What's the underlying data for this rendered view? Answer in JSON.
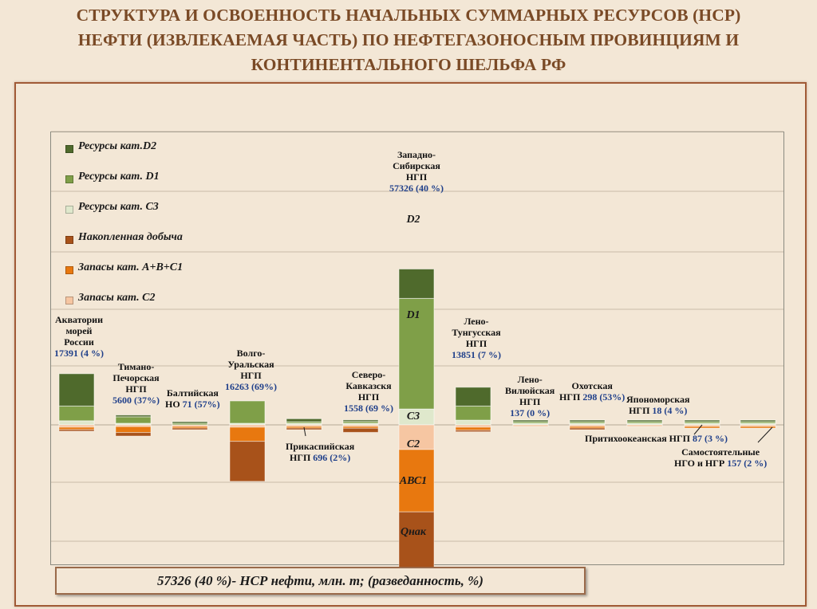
{
  "title_lines": [
    "СТРУКТУРА И ОСВОЕННОСТЬ НАЧАЛЬНЫХ СУММАРНЫХ РЕСУРСОВ (НСР)",
    "НЕФТИ (ИЗВЛЕКАЕМАЯ ЧАСТЬ) ПО НЕФТЕГАЗОНОСНЫМ ПРОВИНЦИЯМ  И",
    "КОНТИНЕНТАЛЬНОГО ШЕЛЬФА РФ"
  ],
  "footer_note": "57326 (40 %)- НСР нефти, млн. т; (разведанность, %)",
  "colors": {
    "background": "#f3e7d6",
    "title": "#7a4a26",
    "value_text": "#1f3f8a",
    "D2": "#4f6a2c",
    "D1": "#7f9f48",
    "C3": "#dfe8cc",
    "Qnak": "#a8521a",
    "ABC1": "#e8780f",
    "C2": "#f6c6a2"
  },
  "chart_data": {
    "type": "bar",
    "subtype": "stacked-diverging",
    "notes": "Segments above the zero line are resources (D2, D1, C3); segments below are production and reserves (Qнак, ABC1, C2). Values are approximate, in million tonnes.",
    "legend_position": "top-left",
    "grid": true,
    "ylim": [
      -21000,
      37000
    ],
    "legend": [
      {
        "key": "D2",
        "label": "Ресурсы кат.D2"
      },
      {
        "key": "D1",
        "label": "Ресурсы кат. D1"
      },
      {
        "key": "C3",
        "label": "Ресурсы кат. С3"
      },
      {
        "key": "Qnak",
        "label": "Накопленная добыча"
      },
      {
        "key": "ABC1",
        "label": "Запасы кат. А+В+С1"
      },
      {
        "key": "C2",
        "label": "Запасы кат. С2"
      }
    ],
    "segment_labels": {
      "D2": "D2",
      "D1": "D1",
      "C3": "С3",
      "C2": "С2",
      "ABC1": "АВС1",
      "Qnak": "Qнак"
    },
    "provinces": [
      {
        "name_lines": [
          "Акватории",
          "морей",
          "России"
        ],
        "value": "17391 (4 %)",
        "total": 17391,
        "explored_pct": 4,
        "segments": {
          "D2": 5500,
          "D1": 2500,
          "C3": 700,
          "Qnak": 100,
          "ABC1": 400,
          "C2": 400
        }
      },
      {
        "name_lines": [
          "Тимано-",
          "Печорская",
          "НГП"
        ],
        "value": "5600 (37%)",
        "total": 5600,
        "explored_pct": 37,
        "segments": {
          "D2": 300,
          "D1": 1100,
          "C3": 100,
          "Qnak": 600,
          "ABC1": 1000,
          "C2": 300
        }
      },
      {
        "name_lines": [
          "Балтийская",
          "НО"
        ],
        "value": "71 (57%)",
        "total": 71,
        "explored_pct": 57,
        "segments": {
          "D2": 20,
          "D1": 10,
          "C3": 0,
          "Qnak": 20,
          "ABC1": 15,
          "C2": 6
        }
      },
      {
        "name_lines": [
          "Волго-",
          "Уральская",
          "НГП"
        ],
        "value": "16263 (69%)",
        "total": 16263,
        "explored_pct": 69,
        "segments": {
          "D2": 0,
          "D1": 3800,
          "C3": 200,
          "Qnak": 6800,
          "ABC1": 2400,
          "C2": 400
        }
      },
      {
        "name_lines": [
          "Прикаспийская",
          "НГП"
        ],
        "value": "696 (2%)",
        "total": 696,
        "explored_pct": 2,
        "segments": {
          "D2": 500,
          "D1": 150,
          "C3": 30,
          "Qnak": 5,
          "ABC1": 5,
          "C2": 6
        }
      },
      {
        "name_lines": [
          "Северо-",
          "Кавказскя",
          "НГП"
        ],
        "value": "1558 (69 %)",
        "total": 1558,
        "explored_pct": 69,
        "segments": {
          "D2": 150,
          "D1": 300,
          "C3": 40,
          "Qnak": 700,
          "ABC1": 300,
          "C2": 68
        }
      },
      {
        "name_lines": [
          "Западно-",
          "Сибирская",
          "НГП"
        ],
        "value": "57326 (40 %)",
        "total": 57326,
        "explored_pct": 40,
        "segments": {
          "D2": 5000,
          "D1": 18800,
          "C3": 2700,
          "Qnak": 11200,
          "ABC1": 10600,
          "C2": 4200
        }
      },
      {
        "name_lines": [
          "Лено-",
          "Тунгусская",
          "НГП"
        ],
        "value": "13851 (7 %)",
        "total": 13851,
        "explored_pct": 7,
        "segments": {
          "D2": 3200,
          "D1": 2400,
          "C3": 800,
          "Qnak": 100,
          "ABC1": 500,
          "C2": 400
        }
      },
      {
        "name_lines": [
          "Лено-",
          "Вилюйская",
          "НГП"
        ],
        "value": "137 (0 %)",
        "total": 137,
        "explored_pct": 0,
        "segments": {
          "D2": 60,
          "D1": 50,
          "C3": 20,
          "Qnak": 0,
          "ABC1": 0,
          "C2": 7
        }
      },
      {
        "name_lines": [
          "Охотская",
          "НГП"
        ],
        "value": "298 (53%)",
        "total": 298,
        "explored_pct": 53,
        "segments": {
          "D2": 60,
          "D1": 60,
          "C3": 20,
          "Qnak": 60,
          "ABC1": 80,
          "C2": 18
        }
      },
      {
        "name_lines": [
          "Япономорская",
          "НГП"
        ],
        "value": "18 (4 %)",
        "total": 18,
        "explored_pct": 4,
        "segments": {
          "D2": 10,
          "D1": 5,
          "C3": 2,
          "Qnak": 0,
          "ABC1": 0,
          "C2": 1
        }
      },
      {
        "name_lines": [
          "Притихоокеанская НГП"
        ],
        "value": "87 (3 %)",
        "total": 87,
        "explored_pct": 3,
        "segments": {
          "D2": 50,
          "D1": 30,
          "C3": 4,
          "Qnak": 0,
          "ABC1": 2,
          "C2": 1
        }
      },
      {
        "name_lines": [
          "Самостоятельные",
          "НГО и НГР"
        ],
        "value": "157 (2 %)",
        "total": 157,
        "explored_pct": 2,
        "segments": {
          "D2": 90,
          "D1": 50,
          "C3": 14,
          "Qnak": 0,
          "ABC1": 2,
          "C2": 1
        }
      }
    ]
  }
}
